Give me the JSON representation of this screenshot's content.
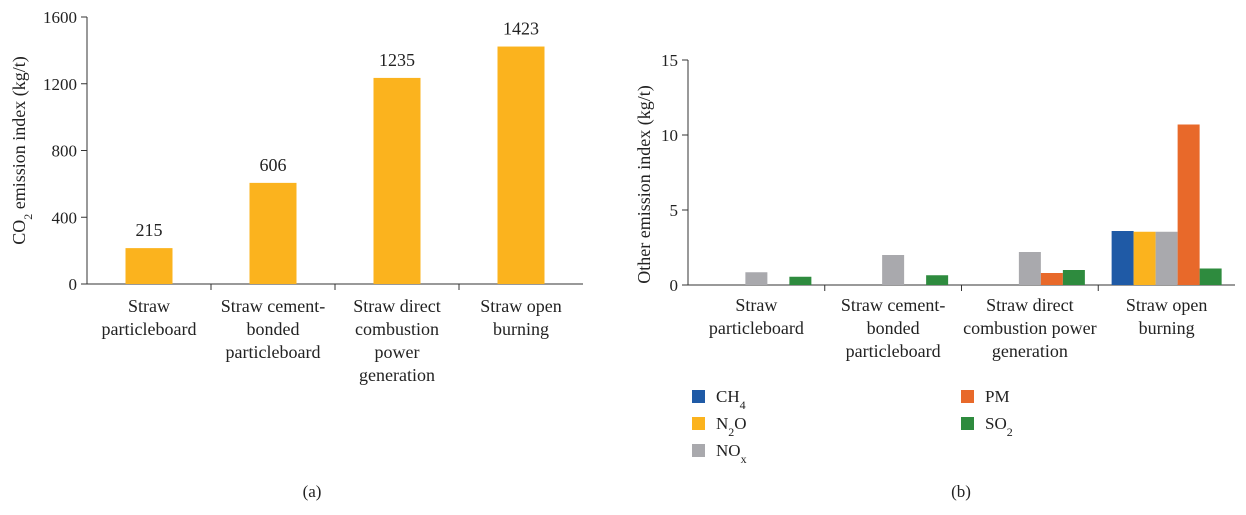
{
  "chart_data": [
    {
      "type": "bar",
      "panel_label": "(a)",
      "ylabel_parts": [
        "CO",
        "2",
        " emission index (kg/t)"
      ],
      "ylim": [
        0,
        1600
      ],
      "yticks": [
        0,
        400,
        800,
        1200,
        1600
      ],
      "categories": [
        [
          "Straw",
          "particleboard"
        ],
        [
          "Straw cement-",
          "bonded",
          "particleboard"
        ],
        [
          "Straw direct",
          "combustion",
          "power",
          "generation"
        ],
        [
          "Straw open",
          "burning"
        ]
      ],
      "values": [
        215,
        606,
        1235,
        1423
      ],
      "data_labels": [
        "215",
        "606",
        "1235",
        "1423"
      ],
      "color": "#FBB31E",
      "grid": false
    },
    {
      "type": "bar",
      "panel_label": "(b)",
      "ylabel": "Other emission index (kg/t)",
      "ylim": [
        0,
        15
      ],
      "yticks": [
        0,
        5,
        10,
        15
      ],
      "categories": [
        [
          "Straw",
          "particleboard"
        ],
        [
          "Straw cement-",
          "bonded",
          "particleboard"
        ],
        [
          "Straw direct",
          "combustion power",
          "generation"
        ],
        [
          "Straw open",
          "burning"
        ]
      ],
      "series": [
        {
          "name_parts": [
            "CH",
            "4",
            ""
          ],
          "color": "#1F5AA6",
          "values": [
            0,
            0,
            0,
            3.6
          ]
        },
        {
          "name_parts": [
            "N",
            "2",
            "O"
          ],
          "color": "#FBB31E",
          "values": [
            0,
            0,
            0,
            3.55
          ]
        },
        {
          "name_parts": [
            "NO",
            "x",
            ""
          ],
          "color": "#A9A9AD",
          "values": [
            0.85,
            2.0,
            2.2,
            3.55
          ]
        },
        {
          "name_parts": [
            "PM",
            "",
            ""
          ],
          "color": "#E8692A",
          "values": [
            0,
            0,
            0.8,
            10.7
          ]
        },
        {
          "name_parts": [
            "SO",
            "2",
            ""
          ],
          "color": "#2E8B3E",
          "values": [
            0.55,
            0.65,
            1.0,
            1.1
          ]
        }
      ],
      "legend_position": "bottom",
      "grid": false
    }
  ]
}
